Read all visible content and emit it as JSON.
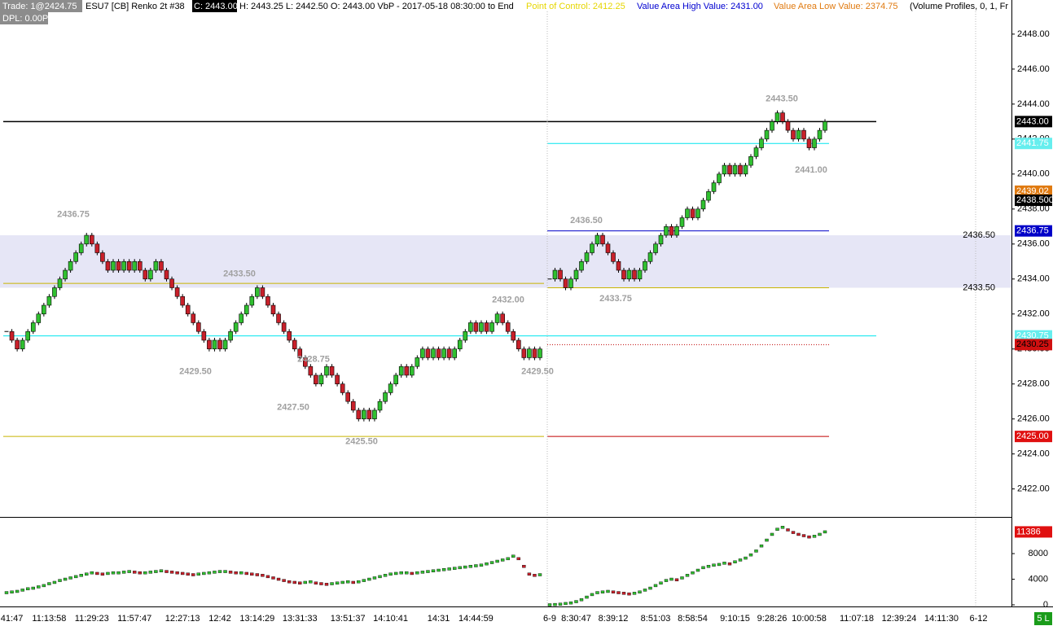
{
  "chart_data": {
    "type": "renko",
    "header": {
      "trade": "Trade: 1@2424.75",
      "symbol": "ESU7 [CB]  Renko 2t  #38",
      "close": "C: 2443.00",
      "ohl": "H: 2443.25  L: 2442.50  O: 2443.00  VbP - 2017-05-18  08:30:00 to End",
      "poc": "Point of Control: 2412.25",
      "vah": "Value Area High Value: 2431.00",
      "val": "Value Area Low Value: 2374.75",
      "study": "(Volume Profiles, 0, 1, Fr",
      "dpl": "DPL: 0.00P"
    },
    "up_color": "#30c030",
    "down_color": "#c8202a",
    "ylim": [
      2420.4,
      2449.95
    ],
    "yticks": [
      {
        "value": 2422,
        "label": "2422.00"
      },
      {
        "value": 2424,
        "label": "2424.00"
      },
      {
        "value": 2426,
        "label": "2426.00"
      },
      {
        "value": 2428,
        "label": "2428.00"
      },
      {
        "value": 2430,
        "label": "2430.00"
      },
      {
        "value": 2432,
        "label": "2432.00"
      },
      {
        "value": 2434,
        "label": "2434.00"
      },
      {
        "value": 2436,
        "label": "2436.00"
      },
      {
        "value": 2438,
        "label": "2438.00"
      },
      {
        "value": 2440,
        "label": "2440.00"
      },
      {
        "value": 2442,
        "label": "2442.00"
      },
      {
        "value": 2444,
        "label": "2444.00"
      },
      {
        "value": 2446,
        "label": "2446.00"
      },
      {
        "value": 2448,
        "label": "2448.00"
      }
    ],
    "value_area": {
      "high": 2436.5,
      "low": 2433.5,
      "color": "#e6e6f6"
    },
    "levels": [
      {
        "value": 2443,
        "color": "#000000",
        "span": "all"
      },
      {
        "value": 2441.75,
        "color": "#00e5ee",
        "span": "right"
      },
      {
        "value": 2436.75,
        "color": "#0000c8",
        "span": "right"
      },
      {
        "value": 2433.75,
        "color": "#c8b400",
        "span": "left"
      },
      {
        "value": 2433.5,
        "color": "#c8b400",
        "span": "right"
      },
      {
        "value": 2430.75,
        "color": "#00e5ee",
        "span": "all"
      },
      {
        "value": 2430.25,
        "color": "#c00000",
        "span": "right",
        "dotted": true
      },
      {
        "value": 2425,
        "color": "#c8b400",
        "span": "left"
      },
      {
        "value": 2425,
        "color": "#c00000",
        "span": "right"
      }
    ],
    "annotations": [
      {
        "value": 2436.75,
        "label": "2436.75"
      },
      {
        "value": 2433.5,
        "label": "2433.50"
      },
      {
        "value": 2432,
        "label": "2432.00"
      },
      {
        "value": 2429.5,
        "label": "2429.50"
      },
      {
        "value": 2428.75,
        "label": "2428.75"
      },
      {
        "value": 2427.5,
        "label": "2427.50"
      },
      {
        "value": 2425.5,
        "label": "2425.50"
      },
      {
        "value": 2429.5,
        "label": "2429.50"
      },
      {
        "value": 2436.5,
        "label": "2436.50"
      },
      {
        "value": 2433.75,
        "label": "2433.75"
      },
      {
        "value": 2443.5,
        "label": "2443.50"
      },
      {
        "value": 2441,
        "label": "2441.00"
      },
      {
        "value": 2436.5,
        "label": "2436.50"
      },
      {
        "value": 2433.5,
        "label": "2433.50"
      }
    ],
    "badges": [
      {
        "value": 2443,
        "label": "2443.00",
        "bg": "#000000",
        "fg": "#ffffff"
      },
      {
        "value": 2441.75,
        "label": "2441.75",
        "bg": "#66eeee",
        "fg": "#ffffff"
      },
      {
        "value": 2439.02,
        "label": "2439.02",
        "bg": "#e07a10",
        "fg": "#ffffff"
      },
      {
        "value": 2438.5,
        "label": "2438.500",
        "bg": "#000000",
        "fg": "#ffffff"
      },
      {
        "value": 2436.75,
        "label": "2436.75",
        "bg": "#0000c8",
        "fg": "#ffffff"
      },
      {
        "value": 2430.75,
        "label": "2430.75",
        "bg": "#66eeee",
        "fg": "#ffffff"
      },
      {
        "value": 2430.25,
        "label": "2430.25",
        "bg": "#d01010",
        "fg": "#000000"
      },
      {
        "value": 2425,
        "label": "2425.00",
        "bg": "#e01010",
        "fg": "#ffffff"
      }
    ],
    "indicator": {
      "ylim": [
        0,
        13600
      ],
      "yticks": [
        0,
        4000,
        8000
      ],
      "badge": {
        "value": 11386,
        "label": "11386",
        "bg": "#e01010",
        "fg": "#ffffff"
      }
    },
    "status": "5 L",
    "sessions": [
      {
        "categories": [
          null,
          "41:47",
          null,
          null,
          null,
          null,
          null,
          null,
          "11:13:58",
          null,
          null,
          null,
          null,
          null,
          null,
          null,
          "11:29:23",
          null,
          null,
          null,
          null,
          null,
          null,
          null,
          "11:57:47",
          null,
          null,
          null,
          null,
          null,
          null,
          null,
          null,
          "12:27:13",
          null,
          null,
          null,
          null,
          null,
          null,
          "12:42",
          null,
          null,
          null,
          null,
          null,
          null,
          "13:14:29",
          null,
          null,
          null,
          null,
          null,
          null,
          null,
          "13:31:33",
          null,
          null,
          null,
          null,
          null,
          null,
          null,
          null,
          "13:51:37",
          null,
          null,
          null,
          null,
          null,
          null,
          null,
          "14:10:41",
          null,
          null,
          null,
          null,
          null,
          null,
          null,
          null,
          "14:31",
          null,
          null,
          null,
          null,
          null,
          null,
          "14:44:59",
          null,
          null,
          null,
          null,
          null,
          null,
          null,
          null,
          null,
          null,
          null,
          null
        ],
        "closes": [
          2431,
          2430.5,
          2430,
          2430.5,
          2431,
          2431.5,
          2432,
          2432.5,
          2433,
          2433.5,
          2434,
          2434.5,
          2435,
          2435.5,
          2436,
          2436.5,
          2436,
          2435.5,
          2435,
          2434.5,
          2435,
          2434.5,
          2435,
          2434.5,
          2435,
          2434.5,
          2434,
          2434.5,
          2435,
          2434.5,
          2434,
          2433.5,
          2433,
          2432.5,
          2432,
          2431.5,
          2431,
          2430.5,
          2430,
          2430.5,
          2430,
          2430.5,
          2431,
          2431.5,
          2432,
          2432.5,
          2433,
          2433.5,
          2433,
          2432.5,
          2432,
          2431.5,
          2431,
          2430.5,
          2430,
          2429.5,
          2429,
          2428.5,
          2428,
          2428.5,
          2429,
          2428.5,
          2428,
          2427.5,
          2427,
          2426.5,
          2426,
          2426.5,
          2426,
          2426.5,
          2427,
          2427.5,
          2428,
          2428.5,
          2429,
          2428.5,
          2429,
          2429.5,
          2430,
          2429.5,
          2430,
          2429.5,
          2430,
          2429.5,
          2430,
          2430.5,
          2431,
          2431.5,
          2431,
          2431.5,
          2431,
          2431.5,
          2432,
          2431.5,
          2431,
          2430.5,
          2430,
          2429.5,
          2430,
          2429.5,
          2430
        ],
        "indicator": [
          1900,
          2000,
          2100,
          2300,
          2500,
          2600,
          2800,
          3000,
          3300,
          3500,
          3800,
          4000,
          4200,
          4400,
          4600,
          4800,
          5000,
          4900,
          4800,
          4900,
          5000,
          5000,
          5100,
          5200,
          5100,
          5000,
          5000,
          5100,
          5200,
          5300,
          5200,
          5100,
          5000,
          4900,
          4800,
          4700,
          4800,
          4900,
          5000,
          5100,
          5200,
          5200,
          5100,
          5000,
          5000,
          4900,
          4800,
          4700,
          4600,
          4400,
          4200,
          4000,
          3800,
          3600,
          3500,
          3400,
          3500,
          3600,
          3400,
          3300,
          3200,
          3300,
          3400,
          3500,
          3600,
          3500,
          3600,
          3800,
          4000,
          4200,
          4400,
          4600,
          4800,
          4900,
          5000,
          5000,
          4900,
          5000,
          5100,
          5200,
          5300,
          5400,
          5500,
          5600,
          5700,
          5800,
          5900,
          6000,
          6100,
          6200,
          6400,
          6600,
          6800,
          7000,
          7200,
          7600,
          7200,
          6000,
          4800,
          4600,
          4700
        ]
      },
      {
        "categories": [
          "6-9",
          null,
          null,
          null,
          null,
          "8:30:47",
          null,
          null,
          null,
          null,
          null,
          null,
          "8:39:12",
          null,
          null,
          null,
          null,
          null,
          null,
          null,
          "8:51:03",
          null,
          null,
          null,
          null,
          null,
          null,
          "8:58:54",
          null,
          null,
          null,
          null,
          null,
          null,
          null,
          "9:10:15",
          null,
          null,
          null,
          null,
          null,
          null,
          "9:28:26",
          null,
          null,
          null,
          null,
          null,
          null,
          "10:00:58",
          null,
          null,
          null,
          null,
          null,
          null,
          null,
          null,
          "11:07:18",
          null,
          null,
          null,
          null,
          null,
          null,
          null,
          "12:39:24",
          null,
          null,
          null,
          null,
          null,
          null,
          null,
          "14:11:30",
          null,
          null,
          null,
          null,
          null,
          null,
          "6-12",
          null,
          null,
          null
        ],
        "closes": [
          2434,
          2434.5,
          2434,
          2433.5,
          2434,
          2434.5,
          2435,
          2435.5,
          2436,
          2436.5,
          2436,
          2435.5,
          2435,
          2434.5,
          2434,
          2434.5,
          2434,
          2434.5,
          2435,
          2435.5,
          2436,
          2436.5,
          2437,
          2436.5,
          2437,
          2437.5,
          2438,
          2437.5,
          2438,
          2438.5,
          2439,
          2439.5,
          2440,
          2440.5,
          2440,
          2440.5,
          2440,
          2440.5,
          2441,
          2441.5,
          2442,
          2442.5,
          2443,
          2443.5,
          2443,
          2442.5,
          2442,
          2442.5,
          2442,
          2441.5,
          2442,
          2442.5,
          2443,
          null,
          null,
          null,
          null,
          null,
          null,
          null,
          null,
          null,
          null,
          null,
          null,
          null,
          null,
          null,
          null,
          null,
          null,
          null,
          null,
          null,
          null,
          null,
          null,
          null,
          null,
          null,
          null,
          null,
          null,
          null,
          null
        ],
        "indicator": [
          0,
          50,
          100,
          200,
          300,
          500,
          800,
          1200,
          1600,
          1900,
          2000,
          2100,
          2000,
          1900,
          1800,
          1700,
          1800,
          2000,
          2300,
          2600,
          3000,
          3400,
          3800,
          4000,
          3900,
          4200,
          4600,
          5000,
          5400,
          5800,
          6000,
          6200,
          6300,
          6500,
          6400,
          6700,
          7000,
          7300,
          7800,
          8400,
          9200,
          10100,
          11000,
          11800,
          12100,
          11700,
          11300,
          11000,
          10800,
          10600,
          10700,
          11000,
          11386,
          null,
          null,
          null,
          null,
          null,
          null,
          null,
          null,
          null,
          null,
          null,
          null,
          null,
          null,
          null,
          null,
          null,
          null,
          null,
          null,
          null,
          null,
          null,
          null,
          null,
          null,
          null,
          null,
          null,
          null,
          null,
          null
        ]
      }
    ]
  }
}
